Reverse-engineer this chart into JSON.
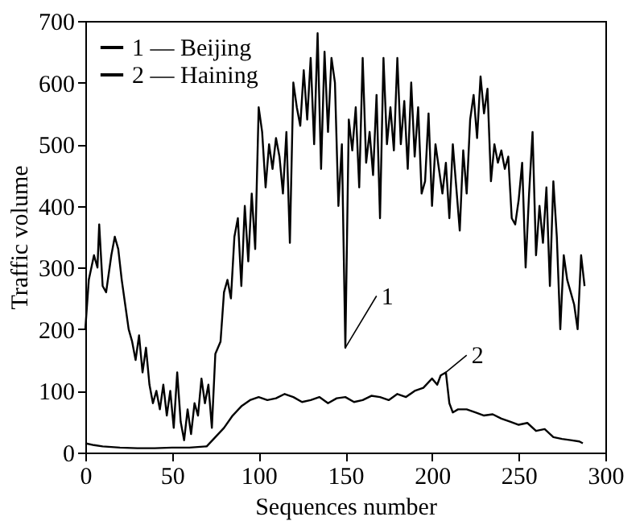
{
  "chart_data": {
    "type": "line",
    "xlabel": "Sequences number",
    "ylabel": "Traffic volume",
    "xlim": [
      0,
      300
    ],
    "xticks": [
      0,
      50,
      100,
      150,
      200,
      250,
      300
    ],
    "ylim": [
      0,
      700
    ],
    "yticks": [
      0,
      100,
      200,
      300,
      400,
      500,
      600,
      700
    ],
    "grid": false,
    "legend": "top left",
    "marker": "none",
    "line_style": "solid",
    "annotations": [
      {
        "text": "1",
        "x": 150,
        "y": 170
      },
      {
        "text": "2",
        "x": 208,
        "y": 130
      }
    ],
    "series": [
      {
        "name": "1 — Beijing",
        "color": "#000000",
        "x": [
          0,
          2,
          5,
          7,
          8,
          10,
          12,
          15,
          17,
          19,
          21,
          23,
          25,
          27,
          29,
          31,
          33,
          35,
          37,
          39,
          41,
          43,
          45,
          47,
          49,
          51,
          53,
          55,
          57,
          59,
          61,
          63,
          65,
          67,
          69,
          71,
          73,
          75,
          78,
          80,
          82,
          84,
          86,
          88,
          90,
          92,
          94,
          96,
          98,
          100,
          102,
          104,
          106,
          108,
          110,
          112,
          114,
          116,
          118,
          120,
          122,
          124,
          126,
          128,
          130,
          132,
          134,
          136,
          138,
          140,
          142,
          144,
          146,
          148,
          150,
          152,
          154,
          156,
          158,
          160,
          162,
          164,
          166,
          168,
          170,
          172,
          174,
          176,
          178,
          180,
          182,
          184,
          186,
          188,
          190,
          192,
          194,
          196,
          198,
          200,
          202,
          204,
          206,
          208,
          210,
          212,
          214,
          216,
          218,
          220,
          222,
          224,
          226,
          228,
          230,
          232,
          234,
          236,
          238,
          240,
          242,
          244,
          246,
          248,
          250,
          252,
          254,
          256,
          258,
          260,
          262,
          264,
          266,
          268,
          270,
          272,
          274,
          276,
          278,
          280,
          282,
          284,
          286,
          288
        ],
        "values": [
          200,
          280,
          320,
          300,
          370,
          270,
          260,
          320,
          350,
          330,
          280,
          240,
          200,
          180,
          150,
          190,
          130,
          170,
          110,
          80,
          100,
          70,
          110,
          60,
          100,
          40,
          130,
          50,
          20,
          70,
          30,
          80,
          60,
          120,
          80,
          110,
          40,
          160,
          180,
          260,
          280,
          250,
          350,
          380,
          270,
          400,
          310,
          420,
          330,
          560,
          520,
          430,
          500,
          460,
          510,
          480,
          420,
          520,
          340,
          600,
          560,
          530,
          620,
          540,
          640,
          500,
          680,
          460,
          650,
          520,
          640,
          600,
          400,
          500,
          170,
          540,
          490,
          560,
          430,
          640,
          470,
          520,
          450,
          580,
          380,
          640,
          500,
          560,
          490,
          640,
          500,
          570,
          460,
          600,
          480,
          560,
          420,
          440,
          550,
          400,
          500,
          460,
          420,
          470,
          380,
          500,
          430,
          360,
          490,
          420,
          540,
          580,
          510,
          610,
          550,
          590,
          440,
          500,
          470,
          490,
          460,
          480,
          380,
          370,
          410,
          470,
          300,
          420,
          520,
          320,
          400,
          340,
          430,
          270,
          440,
          350,
          200,
          320,
          280,
          260,
          240,
          200,
          320,
          270
        ]
      },
      {
        "name": "2 — Haining",
        "color": "#000000",
        "x": [
          0,
          5,
          10,
          20,
          30,
          40,
          50,
          60,
          70,
          75,
          80,
          85,
          90,
          95,
          100,
          105,
          110,
          115,
          120,
          125,
          130,
          135,
          140,
          145,
          150,
          155,
          160,
          165,
          170,
          175,
          180,
          185,
          190,
          195,
          200,
          203,
          205,
          208,
          210,
          212,
          215,
          220,
          225,
          230,
          235,
          240,
          245,
          250,
          255,
          260,
          265,
          270,
          275,
          280,
          285,
          287
        ],
        "values": [
          15,
          12,
          10,
          8,
          7,
          7,
          8,
          8,
          10,
          25,
          40,
          60,
          75,
          85,
          90,
          85,
          88,
          95,
          90,
          82,
          85,
          90,
          80,
          88,
          90,
          82,
          85,
          92,
          90,
          85,
          95,
          90,
          100,
          105,
          120,
          110,
          125,
          130,
          80,
          65,
          70,
          70,
          65,
          60,
          62,
          55,
          50,
          45,
          48,
          35,
          38,
          25,
          22,
          20,
          18,
          15
        ]
      }
    ]
  }
}
